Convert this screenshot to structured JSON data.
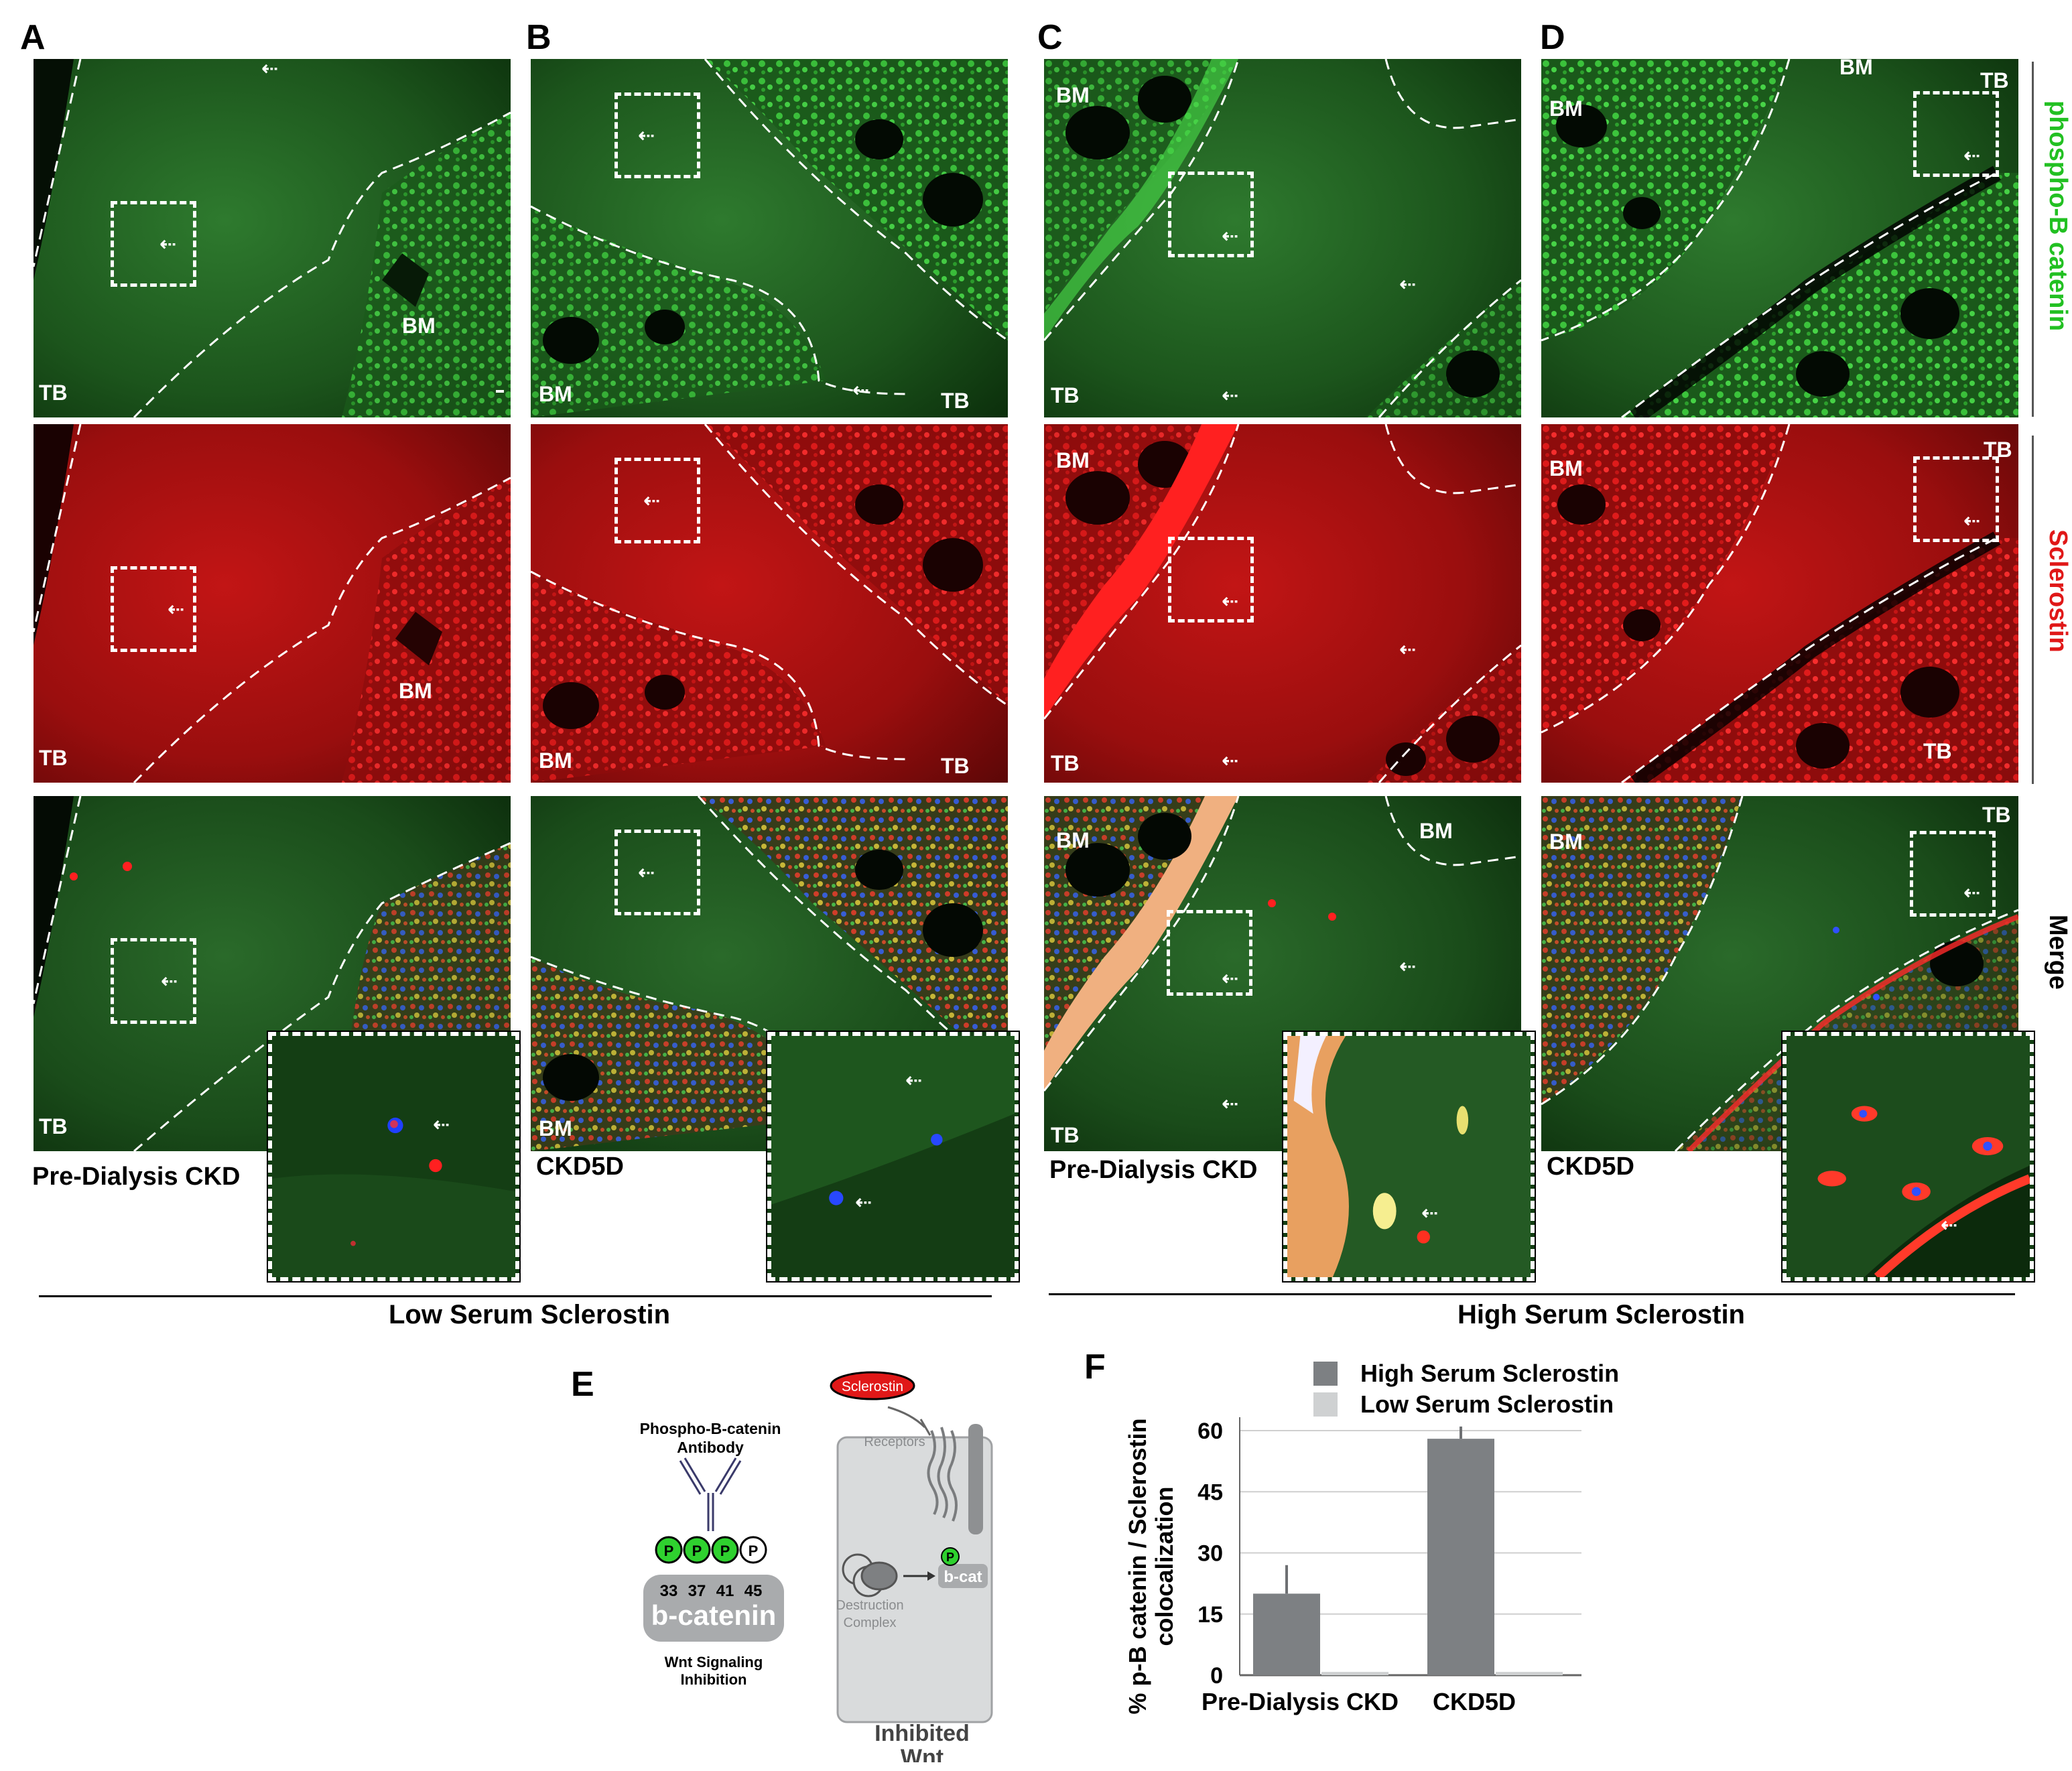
{
  "panels": {
    "A": "A",
    "B": "B",
    "C": "C",
    "D": "D",
    "E": "E",
    "F": "F"
  },
  "region_labels": {
    "tb": "TB",
    "bm": "BM"
  },
  "conditions": {
    "pre_dialysis": "Pre-Dialysis CKD",
    "ckd5d": "CKD5D"
  },
  "groups": {
    "low": "Low Serum Sclerostin",
    "high": "High Serum Sclerostin"
  },
  "channels": {
    "green": "phospho-B catenin",
    "red": "Sclerostin",
    "merge": "Merge"
  },
  "colors": {
    "green_stain": "#2fd12f",
    "red_stain": "#e8141b",
    "high_bar": "#7d8083",
    "low_bar": "#cfd1d2"
  },
  "schematic": {
    "antibody_label": "Phospho-B-catenin Antibody",
    "p": "P",
    "sites": [
      "33",
      "37",
      "41",
      "45"
    ],
    "protein": "b-catenin",
    "inhibition": "Wnt Signaling Inhibition",
    "sclerostin": "Sclerostin",
    "receptors": "Receptors",
    "destruction": "Destruction Complex",
    "bcat": "b-cat",
    "cell_label": "Inhibited Wnt"
  },
  "chart_data": {
    "type": "bar",
    "categories": [
      "Pre-Dialysis CKD",
      "CKD5D"
    ],
    "series": [
      {
        "name": "High Serum Sclerostin",
        "values": [
          20,
          58
        ],
        "errors": [
          7,
          3
        ]
      },
      {
        "name": "Low Serum Sclerostin",
        "values": [
          0.8,
          0.8
        ],
        "errors": [
          0,
          0
        ]
      }
    ],
    "ylabel": "% p-B catenin / Sclerostin colocalization",
    "yticks": [
      "0",
      "15",
      "30",
      "45",
      "60"
    ],
    "ylim": [
      0,
      60
    ],
    "grid": true,
    "legend": "top"
  }
}
